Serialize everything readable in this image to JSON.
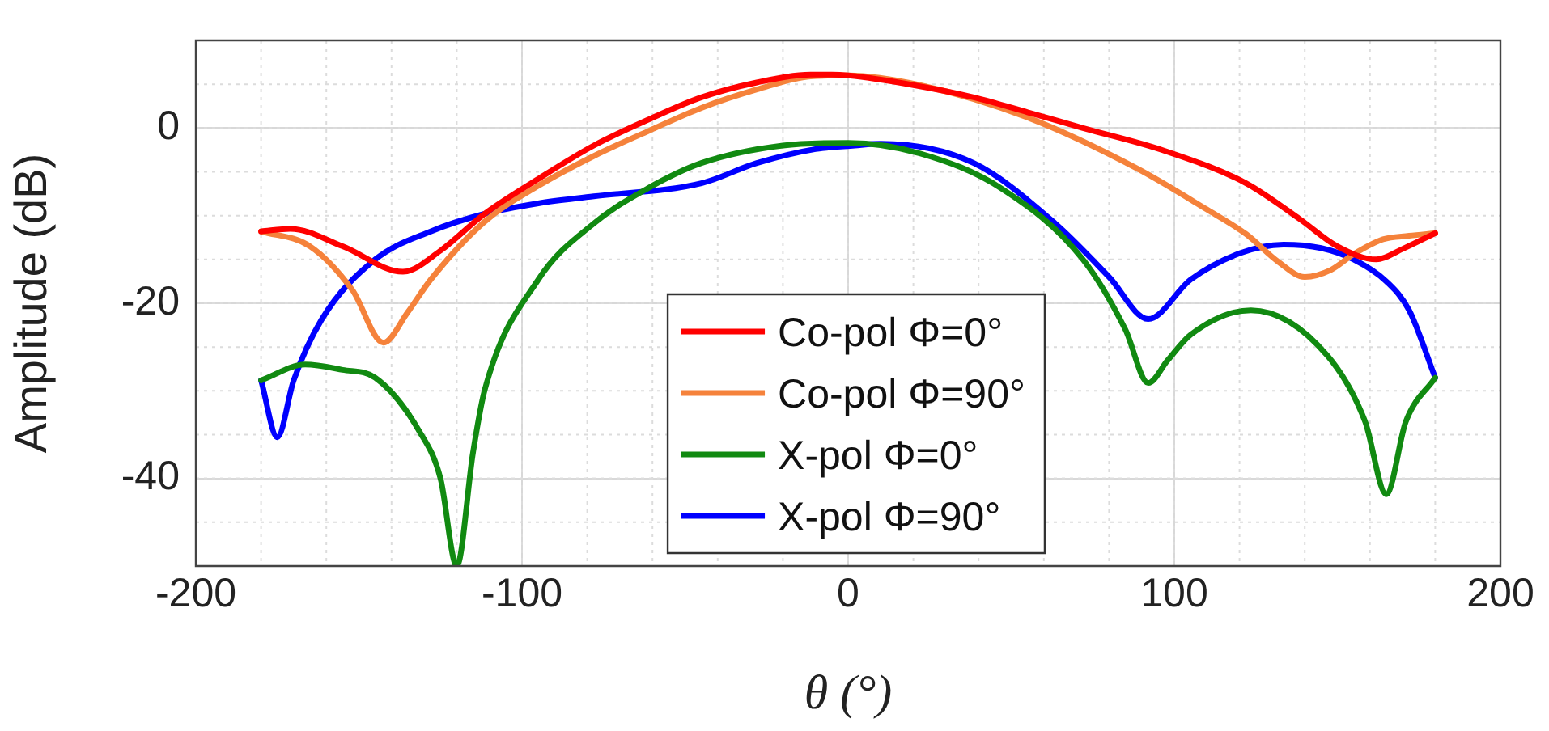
{
  "chart_data": {
    "type": "line",
    "xlabel": "θ (°)",
    "ylabel": "Amplitude (dB)",
    "xlim": [
      -200,
      200
    ],
    "ylim": [
      -50,
      10
    ],
    "xticks": [
      -200,
      -100,
      0,
      100,
      200
    ],
    "yticks": [
      -40,
      -20,
      0
    ],
    "grid": true,
    "legend": "bottom",
    "marker": "none",
    "line_style": "solid",
    "series": [
      {
        "name": "Co-pol Φ=0°",
        "color": "#ff0000",
        "x": [
          -180,
          -171,
          -155,
          -136.5,
          -125,
          -111.5,
          -95,
          -78,
          -61,
          -45,
          -28,
          -11.5,
          -5,
          0,
          20,
          38.5,
          55,
          72,
          97,
          122,
          138.5,
          150,
          162,
          170,
          180
        ],
        "values": [
          -11.8,
          -11.5,
          -13.5,
          -16.4,
          -14,
          -9.8,
          -5.8,
          -2,
          1,
          3.5,
          5.2,
          6.1,
          6.1,
          6,
          4.9,
          3.5,
          1.8,
          0,
          -2.6,
          -6.3,
          -10.4,
          -13.5,
          -15,
          -13.8,
          -12
        ]
      },
      {
        "name": "Co-pol Φ=90°",
        "color": "#f5823b",
        "x": [
          -180,
          -165,
          -152,
          -142.5,
          -135,
          -128,
          -111.5,
          -95,
          -78,
          -61,
          -45,
          -28,
          -11.5,
          0,
          22,
          55,
          88.5,
          110,
          122,
          132,
          140,
          148,
          155,
          164,
          172,
          180
        ],
        "values": [
          -11.8,
          -13.5,
          -18.5,
          -24.5,
          -21,
          -17.3,
          -10.7,
          -6.6,
          -3.2,
          -0.3,
          2.3,
          4.4,
          5.9,
          6,
          4.9,
          1.2,
          -4.6,
          -9.3,
          -12.1,
          -15.3,
          -17,
          -16.2,
          -14.4,
          -12.7,
          -12.3,
          -12
        ]
      },
      {
        "name": "X-pol Φ=0°",
        "color": "#118a11",
        "x": [
          -180,
          -166.5,
          -155,
          -145,
          -131.5,
          -125,
          -120,
          -115,
          -111.5,
          -95,
          -78,
          -61.5,
          -45,
          -20,
          0,
          22,
          47,
          72,
          85,
          92,
          98,
          105,
          123.5,
          147,
          158.5,
          165,
          171,
          180
        ],
        "values": [
          -28.8,
          -27,
          -27.6,
          -28.5,
          -34.6,
          -40,
          -50,
          -37,
          -30,
          -17.3,
          -10.9,
          -6.9,
          -4,
          -2,
          -1.7,
          -2.9,
          -6.9,
          -15,
          -23,
          -29.1,
          -26.5,
          -23.6,
          -20.8,
          -26,
          -33.5,
          -41.8,
          -33.5,
          -28.5
        ]
      },
      {
        "name": "X-pol Φ=90°",
        "color": "#0000ff",
        "x": [
          -180,
          -175,
          -170,
          -161.5,
          -145,
          -128,
          -111.5,
          -95,
          -78,
          -45,
          -28,
          -10,
          2,
          10,
          38.5,
          63.5,
          80,
          92,
          105,
          120,
          133.5,
          145,
          155,
          165,
          172,
          180
        ],
        "values": [
          -28.8,
          -35.3,
          -28.8,
          -21.9,
          -15,
          -11.8,
          -9.8,
          -8.6,
          -7.8,
          -6.3,
          -4,
          -2.4,
          -2,
          -1.8,
          -4,
          -10.9,
          -17,
          -21.8,
          -17.3,
          -14.3,
          -13.3,
          -13.7,
          -15,
          -17.5,
          -20.8,
          -28.5
        ]
      }
    ]
  }
}
